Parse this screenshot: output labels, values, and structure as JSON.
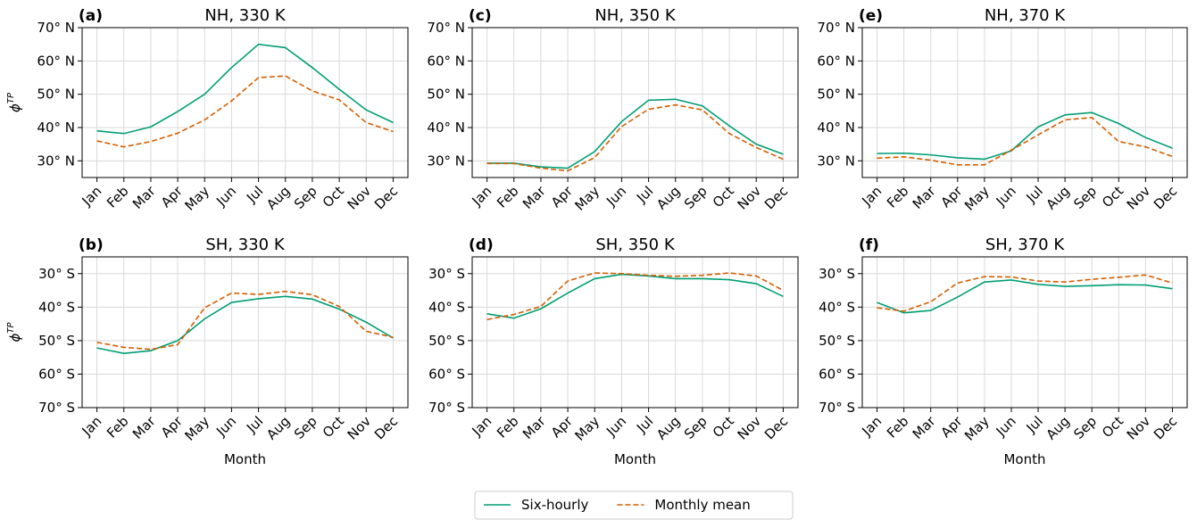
{
  "chart_data": [
    {
      "type": "line",
      "label": "(a)",
      "title": "NH, 330 K",
      "ylabel": "ϕ",
      "ylabel_superscript": "TP",
      "categories": [
        "Jan",
        "Feb",
        "Mar",
        "Apr",
        "May",
        "Jun",
        "Jul",
        "Aug",
        "Sep",
        "Oct",
        "Nov",
        "Dec"
      ],
      "series": [
        {
          "name": "Six-hourly",
          "color": "#009e73",
          "linestyle": "solid",
          "values": [
            39,
            38.2,
            40.2,
            44.8,
            50,
            58,
            65,
            64,
            58,
            51.5,
            45.3,
            41.5
          ]
        },
        {
          "name": "Monthly mean",
          "color": "#d55e00",
          "linestyle": "dashed",
          "values": [
            36,
            34.2,
            35.8,
            38.3,
            42.3,
            48,
            55,
            55.5,
            51,
            48.3,
            41.5,
            38.8
          ]
        }
      ],
      "ylim": [
        25,
        70
      ],
      "yticks": [
        {
          "value": 30,
          "label": "30° N"
        },
        {
          "value": 40,
          "label": "40° N"
        },
        {
          "value": 50,
          "label": "50° N"
        },
        {
          "value": 60,
          "label": "60° N"
        },
        {
          "value": 70,
          "label": "70° N"
        }
      ],
      "grid": true,
      "legend": "lower center"
    },
    {
      "type": "line",
      "label": "(b)",
      "title": "SH, 330 K",
      "ylabel": "ϕ",
      "ylabel_superscript": "TP",
      "xlabel": "Month",
      "categories": [
        "Jan",
        "Feb",
        "Mar",
        "Apr",
        "May",
        "Jun",
        "Jul",
        "Aug",
        "Sep",
        "Oct",
        "Nov",
        "Dec"
      ],
      "series": [
        {
          "color": "#009e73",
          "linestyle": "solid",
          "values": [
            -52.2,
            -53.8,
            -53,
            -50,
            -43.5,
            -38.6,
            -37.5,
            -36.8,
            -37.6,
            -40.6,
            -44.5,
            -49.2
          ]
        },
        {
          "color": "#d55e00",
          "linestyle": "dashed",
          "values": [
            -50.5,
            -52,
            -52.6,
            -51.2,
            -40.2,
            -35.8,
            -36.2,
            -35.3,
            -36.3,
            -39.8,
            -47.2,
            -49
          ]
        }
      ],
      "ylim": [
        -70,
        -25
      ],
      "yticks": [
        {
          "value": -30,
          "label": "30° S"
        },
        {
          "value": -40,
          "label": "40° S"
        },
        {
          "value": -50,
          "label": "50° S"
        },
        {
          "value": -60,
          "label": "60° S"
        },
        {
          "value": -70,
          "label": "70° S"
        }
      ],
      "grid": true
    },
    {
      "type": "line",
      "label": "(c)",
      "title": "NH, 350 K",
      "categories": [
        "Jan",
        "Feb",
        "Mar",
        "Apr",
        "May",
        "Jun",
        "Jul",
        "Aug",
        "Sep",
        "Oct",
        "Nov",
        "Dec"
      ],
      "series": [
        {
          "color": "#009e73",
          "linestyle": "solid",
          "values": [
            29.3,
            29.3,
            28.2,
            27.8,
            32.8,
            41.8,
            48.2,
            48.5,
            46.5,
            40.5,
            35,
            32
          ]
        },
        {
          "color": "#d55e00",
          "linestyle": "dashed",
          "values": [
            29.2,
            29.2,
            27.8,
            27,
            31,
            40.3,
            45.5,
            46.8,
            45.3,
            38.2,
            34,
            30.5
          ]
        }
      ],
      "ylim": [
        25,
        70
      ],
      "yticks": [
        {
          "value": 30,
          "label": "30° N"
        },
        {
          "value": 40,
          "label": "40° N"
        },
        {
          "value": 50,
          "label": "50° N"
        },
        {
          "value": 60,
          "label": "60° N"
        },
        {
          "value": 70,
          "label": "70° N"
        }
      ],
      "grid": true
    },
    {
      "type": "line",
      "label": "(d)",
      "title": "SH, 350 K",
      "xlabel": "Month",
      "categories": [
        "Jan",
        "Feb",
        "Mar",
        "Apr",
        "May",
        "Jun",
        "Jul",
        "Aug",
        "Sep",
        "Oct",
        "Nov",
        "Dec"
      ],
      "series": [
        {
          "color": "#009e73",
          "linestyle": "solid",
          "values": [
            -42,
            -43.3,
            -40.5,
            -35.8,
            -31.5,
            -30.2,
            -30.7,
            -31.5,
            -31.5,
            -31.8,
            -33,
            -36.8
          ]
        },
        {
          "color": "#d55e00",
          "linestyle": "dashed",
          "values": [
            -43.7,
            -42.2,
            -39.8,
            -32.2,
            -29.8,
            -30,
            -30.5,
            -30.8,
            -30.5,
            -29.8,
            -30.7,
            -35
          ]
        }
      ],
      "ylim": [
        -70,
        -25
      ],
      "yticks": [
        {
          "value": -30,
          "label": "30° S"
        },
        {
          "value": -40,
          "label": "40° S"
        },
        {
          "value": -50,
          "label": "50° S"
        },
        {
          "value": -60,
          "label": "60° S"
        },
        {
          "value": -70,
          "label": "70° S"
        }
      ],
      "grid": true
    },
    {
      "type": "line",
      "label": "(e)",
      "title": "NH, 370 K",
      "categories": [
        "Jan",
        "Feb",
        "Mar",
        "Apr",
        "May",
        "Jun",
        "Jul",
        "Aug",
        "Sep",
        "Oct",
        "Nov",
        "Dec"
      ],
      "series": [
        {
          "color": "#009e73",
          "linestyle": "solid",
          "values": [
            32.2,
            32.3,
            31.8,
            30.9,
            30.5,
            33,
            40.2,
            43.8,
            44.5,
            41.2,
            37,
            33.8
          ]
        },
        {
          "color": "#d55e00",
          "linestyle": "dashed",
          "values": [
            30.8,
            31.2,
            30.2,
            28.8,
            28.8,
            33.2,
            37.8,
            42.3,
            43,
            35.8,
            34.2,
            31.3
          ]
        }
      ],
      "ylim": [
        25,
        70
      ],
      "yticks": [
        {
          "value": 30,
          "label": "30° N"
        },
        {
          "value": 40,
          "label": "40° N"
        },
        {
          "value": 50,
          "label": "50° N"
        },
        {
          "value": 60,
          "label": "60° N"
        },
        {
          "value": 70,
          "label": "70° N"
        }
      ],
      "grid": true
    },
    {
      "type": "line",
      "label": "(f)",
      "title": "SH, 370 K",
      "xlabel": "Month",
      "categories": [
        "Jan",
        "Feb",
        "Mar",
        "Apr",
        "May",
        "Jun",
        "Jul",
        "Aug",
        "Sep",
        "Oct",
        "Nov",
        "Dec"
      ],
      "series": [
        {
          "color": "#009e73",
          "linestyle": "solid",
          "values": [
            -38.6,
            -41.7,
            -41,
            -37,
            -32.5,
            -31.9,
            -33.2,
            -33.8,
            -33.6,
            -33.3,
            -33.4,
            -34.5
          ]
        },
        {
          "color": "#d55e00",
          "linestyle": "dashed",
          "values": [
            -40.2,
            -41.2,
            -38.4,
            -32.8,
            -30.9,
            -31,
            -32.2,
            -32.5,
            -31.7,
            -31.1,
            -30.4,
            -32.8
          ]
        }
      ],
      "ylim": [
        -70,
        -25
      ],
      "yticks": [
        {
          "value": -30,
          "label": "30° S"
        },
        {
          "value": -40,
          "label": "40° S"
        },
        {
          "value": -50,
          "label": "50° S"
        },
        {
          "value": -60,
          "label": "60° S"
        },
        {
          "value": -70,
          "label": "70° S"
        }
      ],
      "grid": true
    }
  ]
}
